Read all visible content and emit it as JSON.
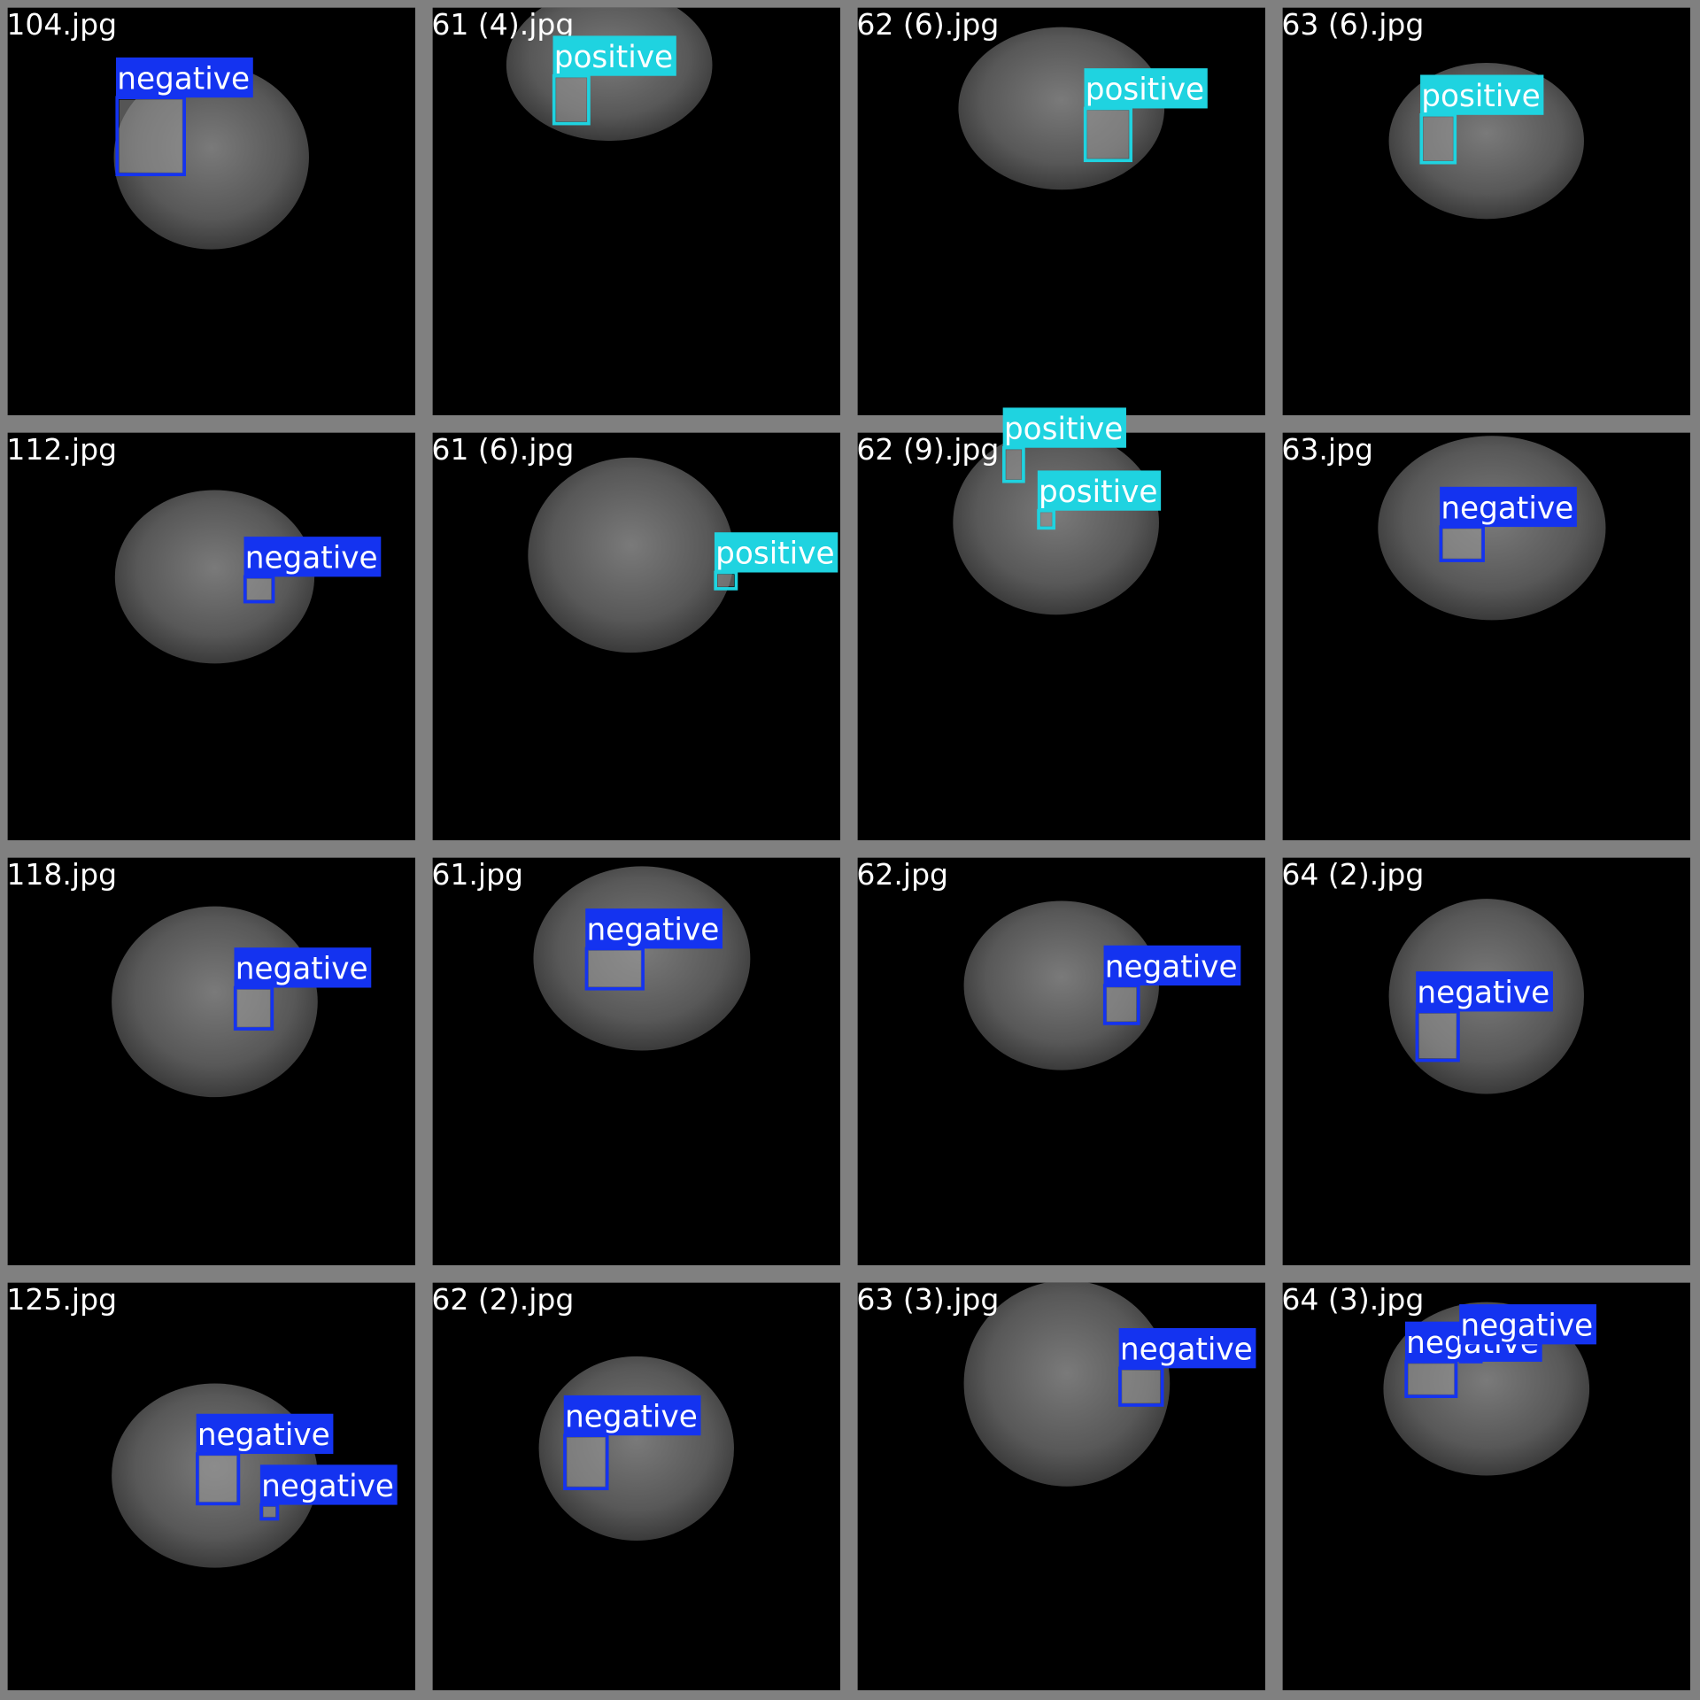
{
  "tiles": [
    {
      "filename": "104.jpg",
      "detections": [
        {
          "label": "negative",
          "color": "#1433f0"
        }
      ]
    },
    {
      "filename": "61 (4).jpg",
      "detections": [
        {
          "label": "positive",
          "color": "#1fd3e0"
        }
      ]
    },
    {
      "filename": "62 (6).jpg",
      "detections": [
        {
          "label": "positive",
          "color": "#1fd3e0"
        }
      ]
    },
    {
      "filename": "63 (6).jpg",
      "detections": [
        {
          "label": "positive",
          "color": "#1fd3e0"
        }
      ]
    },
    {
      "filename": "112.jpg",
      "detections": [
        {
          "label": "negative",
          "color": "#1433f0"
        }
      ]
    },
    {
      "filename": "61 (6).jpg",
      "detections": [
        {
          "label": "positive",
          "color": "#1fd3e0"
        }
      ]
    },
    {
      "filename": "62 (9).jpg",
      "detections": [
        {
          "label": "positive",
          "color": "#1fd3e0"
        },
        {
          "label": "positive",
          "color": "#1fd3e0"
        }
      ]
    },
    {
      "filename": "63.jpg",
      "detections": [
        {
          "label": "negative",
          "color": "#1433f0"
        }
      ]
    },
    {
      "filename": "118.jpg",
      "detections": [
        {
          "label": "negative",
          "color": "#1433f0"
        }
      ]
    },
    {
      "filename": "61.jpg",
      "detections": [
        {
          "label": "negative",
          "color": "#1433f0"
        }
      ]
    },
    {
      "filename": "62.jpg",
      "detections": [
        {
          "label": "negative",
          "color": "#1433f0"
        }
      ]
    },
    {
      "filename": "64 (2).jpg",
      "detections": [
        {
          "label": "negative",
          "color": "#1433f0"
        }
      ]
    },
    {
      "filename": "125.jpg",
      "detections": [
        {
          "label": "negative",
          "color": "#1433f0"
        },
        {
          "label": "negative",
          "color": "#1433f0"
        }
      ]
    },
    {
      "filename": "62 (2).jpg",
      "detections": [
        {
          "label": "negative",
          "color": "#1433f0"
        }
      ]
    },
    {
      "filename": "63 (3).jpg",
      "detections": [
        {
          "label": "negative",
          "color": "#1433f0"
        }
      ]
    },
    {
      "filename": "64 (3).jpg",
      "detections": [
        {
          "label": "negative",
          "color": "#1433f0"
        },
        {
          "label": "negative",
          "color": "#1433f0"
        }
      ]
    }
  ]
}
